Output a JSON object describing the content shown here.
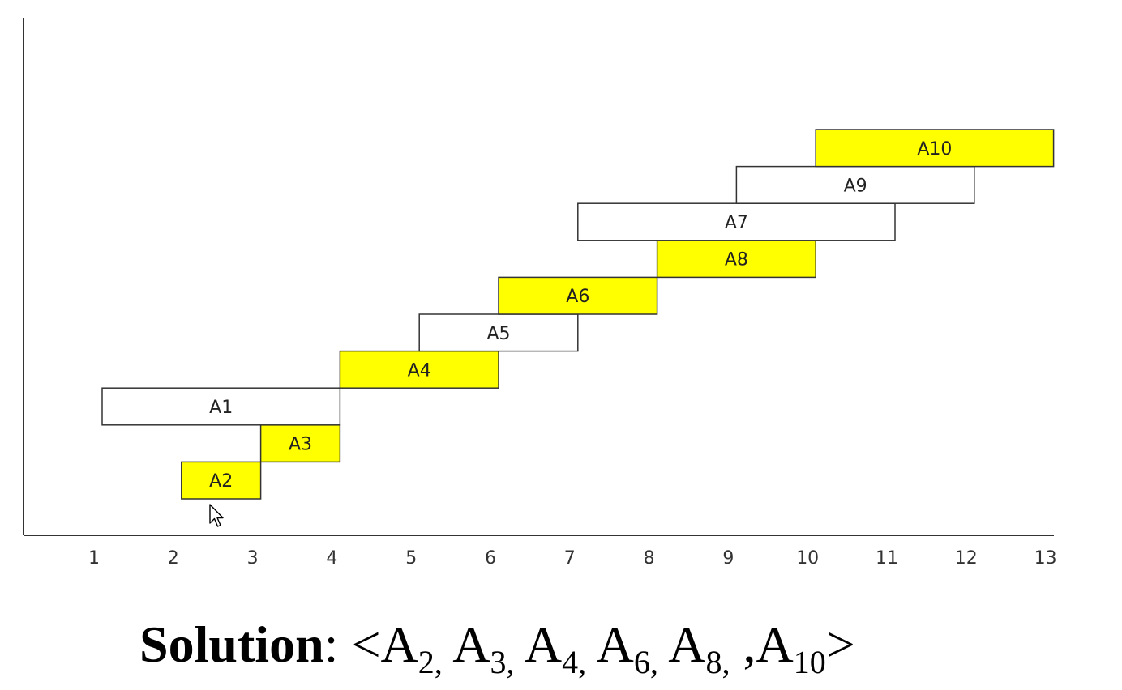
{
  "chart_data": {
    "type": "gantt",
    "x_ticks": [
      "1",
      "2",
      "3",
      "4",
      "5",
      "6",
      "7",
      "8",
      "9",
      "10",
      "11",
      "12",
      "13"
    ],
    "xlim": [
      0,
      13
    ],
    "colors": {
      "selected": "#FFFF00",
      "unselected": "#FFFFFF",
      "border": "#333333"
    },
    "activities": [
      {
        "label": "A2",
        "start": 2,
        "end": 3,
        "selected": true
      },
      {
        "label": "A3",
        "start": 3,
        "end": 4,
        "selected": true
      },
      {
        "label": "A1",
        "start": 1,
        "end": 4,
        "selected": false
      },
      {
        "label": "A4",
        "start": 4,
        "end": 6,
        "selected": true
      },
      {
        "label": "A5",
        "start": 5,
        "end": 7,
        "selected": false
      },
      {
        "label": "A6",
        "start": 6,
        "end": 8,
        "selected": true
      },
      {
        "label": "A8",
        "start": 8,
        "end": 10,
        "selected": true
      },
      {
        "label": "A7",
        "start": 7,
        "end": 11,
        "selected": false
      },
      {
        "label": "A9",
        "start": 9,
        "end": 12,
        "selected": false
      },
      {
        "label": "A10",
        "start": 10,
        "end": 13,
        "selected": true
      }
    ]
  },
  "solution": {
    "label": "Solution",
    "separator": ": ",
    "open": "<",
    "close": ">",
    "items": [
      {
        "letter": "A",
        "sub": "2",
        "suffix": ","
      },
      {
        "letter": "A",
        "sub": "3",
        "suffix": ","
      },
      {
        "letter": "A",
        "sub": "4",
        "suffix": ","
      },
      {
        "letter": "A",
        "sub": "6",
        "suffix": ","
      },
      {
        "letter": "A",
        "sub": "8",
        "suffix": ", ,"
      },
      {
        "letter": "A",
        "sub": "10",
        "suffix": ""
      }
    ]
  }
}
